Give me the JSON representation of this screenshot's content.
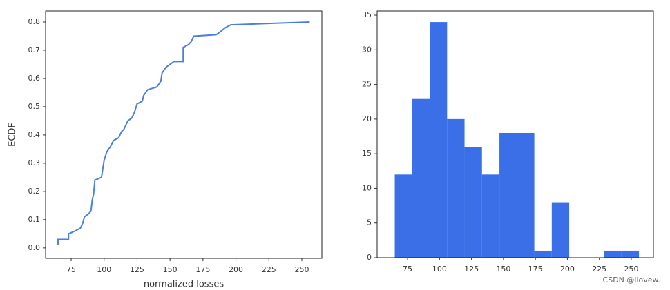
{
  "chart_data": [
    {
      "type": "line",
      "xlabel": "normalized losses",
      "ylabel": "ECDF",
      "series": [
        {
          "color": "#4a7fe0",
          "x": [
            65,
            65,
            73,
            73,
            78,
            82,
            84,
            85,
            88,
            90,
            91,
            92,
            93,
            98,
            99,
            100,
            102,
            105,
            107,
            111,
            113,
            115,
            118,
            121,
            123,
            125,
            129,
            130,
            133,
            140,
            143,
            144,
            147,
            150,
            153,
            160,
            160,
            164,
            166,
            168,
            185,
            188,
            192,
            196,
            256
          ],
          "values": [
            0.01,
            0.03,
            0.03,
            0.05,
            0.06,
            0.07,
            0.09,
            0.11,
            0.12,
            0.13,
            0.17,
            0.19,
            0.24,
            0.25,
            0.28,
            0.31,
            0.34,
            0.36,
            0.38,
            0.39,
            0.41,
            0.42,
            0.45,
            0.46,
            0.48,
            0.51,
            0.52,
            0.54,
            0.56,
            0.57,
            0.59,
            0.62,
            0.64,
            0.65,
            0.66,
            0.66,
            0.71,
            0.72,
            0.73,
            0.75,
            0.755,
            0.765,
            0.78,
            0.79,
            0.8
          ]
        }
      ],
      "xlim": [
        55.6,
        265.2
      ],
      "xticks": [
        75,
        100,
        125,
        150,
        175,
        200,
        225,
        250
      ],
      "ylim": [
        -0.037,
        0.839
      ],
      "yticks": [
        {
          "value": 0,
          "label": "0.0"
        },
        0.1,
        0.2,
        0.3,
        0.4,
        0.5,
        0.6,
        0.7,
        0.8
      ]
    },
    {
      "type": "histogram",
      "color": "#3a6fe8",
      "bins": [
        65,
        78.64,
        92.29,
        105.93,
        119.57,
        133.21,
        146.86,
        160.5,
        174.14,
        187.79,
        201.43,
        215.07,
        228.71,
        242.36,
        256
      ],
      "values": [
        12,
        23,
        34,
        20,
        16,
        12,
        18,
        18,
        1,
        8,
        0,
        0,
        1,
        1
      ],
      "xlim": [
        51.2,
        267.3
      ],
      "xticks": [
        75,
        100,
        125,
        150,
        175,
        200,
        225,
        250
      ],
      "ylim": [
        0,
        35.6
      ],
      "yticks": [
        0,
        5,
        10,
        15,
        20,
        25,
        30,
        35
      ]
    }
  ],
  "watermark": "CSDN @llovew."
}
